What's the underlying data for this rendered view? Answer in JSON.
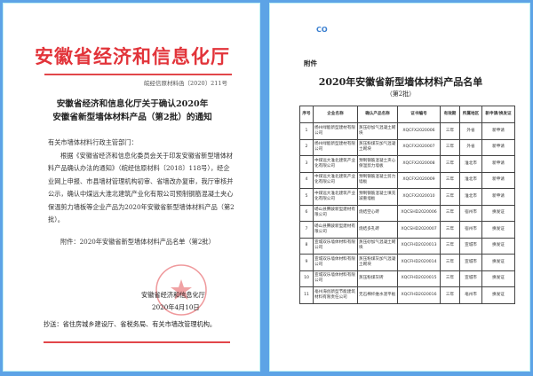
{
  "left_page": {
    "org_title": "安徽省经济和信息化厅",
    "doc_number": "皖经信原材料函〔2020〕211号",
    "heading_lines": [
      "安徽省经济和信息化厅关于确认2020年",
      "安徽省新型墙体材料产品（第2批）的通知"
    ],
    "salutation": "有关市墙体材料行政主管部门：",
    "body": "根据《安徽省经济和信息化委员会关于印发安徽省新型墙体材料产品确认办法的通知》（皖经信原材料〔2018〕118号），经企业网上申报、市县墙材管理机构初审、省墙改办复审，我厅审核并公示，确认中煤远大淮北建筑产业化有限公司预制钢筋混凝土夹心保温剪力墙板等企业产品为2020年安徽省新型墙体材料产品（第2批）。",
    "attachment": "附件：2020年安徽省新型墙体材料产品名单（第2批）",
    "signature": "安徽省经济和信息化厅",
    "date": "2020年4月10日",
    "cc": "抄送：省住房城乡建设厅、省税务局、有关市墙改管理机构。"
  },
  "right_page": {
    "logo": "CO",
    "attachment_label": "附件",
    "title": "2020年安徽省新型墙体材料产品名单",
    "subtitle": "（第2批）",
    "table": {
      "headers": [
        "序号",
        "企业名称",
        "确认产品名称",
        "证书编号",
        "有效期",
        "所属地区",
        "新申请/换发证"
      ],
      "rows": [
        [
          "1",
          "扬州绿能新型建材有限公司",
          "蒸压砂加气混凝土砌块",
          "XQCFX2020006",
          "三年",
          "外省",
          "新申请"
        ],
        [
          "2",
          "扬州绿能新型建材有限公司",
          "蒸压粉煤灰加气混凝土砌块",
          "XQCFX2020007",
          "三年",
          "外省",
          "新申请"
        ],
        [
          "3",
          "中煤远大淮北建筑产业化有限公司",
          "预制钢筋混凝土夹心保温剪力墙板",
          "XQCFX2020008",
          "三年",
          "淮北市",
          "新申请"
        ],
        [
          "4",
          "中煤远大淮北建筑产业化有限公司",
          "预制钢筋混凝土剪力墙板",
          "XQCFX2020009",
          "三年",
          "淮北市",
          "新申请"
        ],
        [
          "5",
          "中煤远大淮北建筑产业化有限公司",
          "预制钢筋混凝土填充减重墙板",
          "XQCFX2020010",
          "三年",
          "淮北市",
          "新申请"
        ],
        [
          "6",
          "砀山县腾骏新型建材有限公司",
          "烧结空心砖",
          "XQCSHD2020006",
          "三年",
          "宿州市",
          "换发证"
        ],
        [
          "7",
          "砀山县腾骏新型建材有限公司",
          "烧结多孔砖",
          "XQCSHD2020007",
          "三年",
          "宿州市",
          "换发证"
        ],
        [
          "8",
          "宣城双乐墙体材料有限公司",
          "蒸压砂加气混凝土砌块",
          "XQCFHD2020013",
          "三年",
          "宣城市",
          "换发证"
        ],
        [
          "9",
          "宣城双乐墙体材料有限公司",
          "蒸压粉煤灰加气混凝土砌块",
          "XQCFHD2020014",
          "三年",
          "宣城市",
          "换发证"
        ],
        [
          "10",
          "宣城双乐墙体材料有限公司",
          "蒸压粉煤灰砖",
          "XQCFHD2020015",
          "三年",
          "宣城市",
          "换发证"
        ],
        [
          "11",
          "亳州海创新型节能建筑材料有限责任公司",
          "无石棉纤维水泥平板",
          "XQCFHD2020016",
          "三年",
          "亳州市",
          "换发证"
        ]
      ]
    }
  },
  "colors": {
    "frame": "#5da3e6",
    "red": "#e2343a"
  }
}
